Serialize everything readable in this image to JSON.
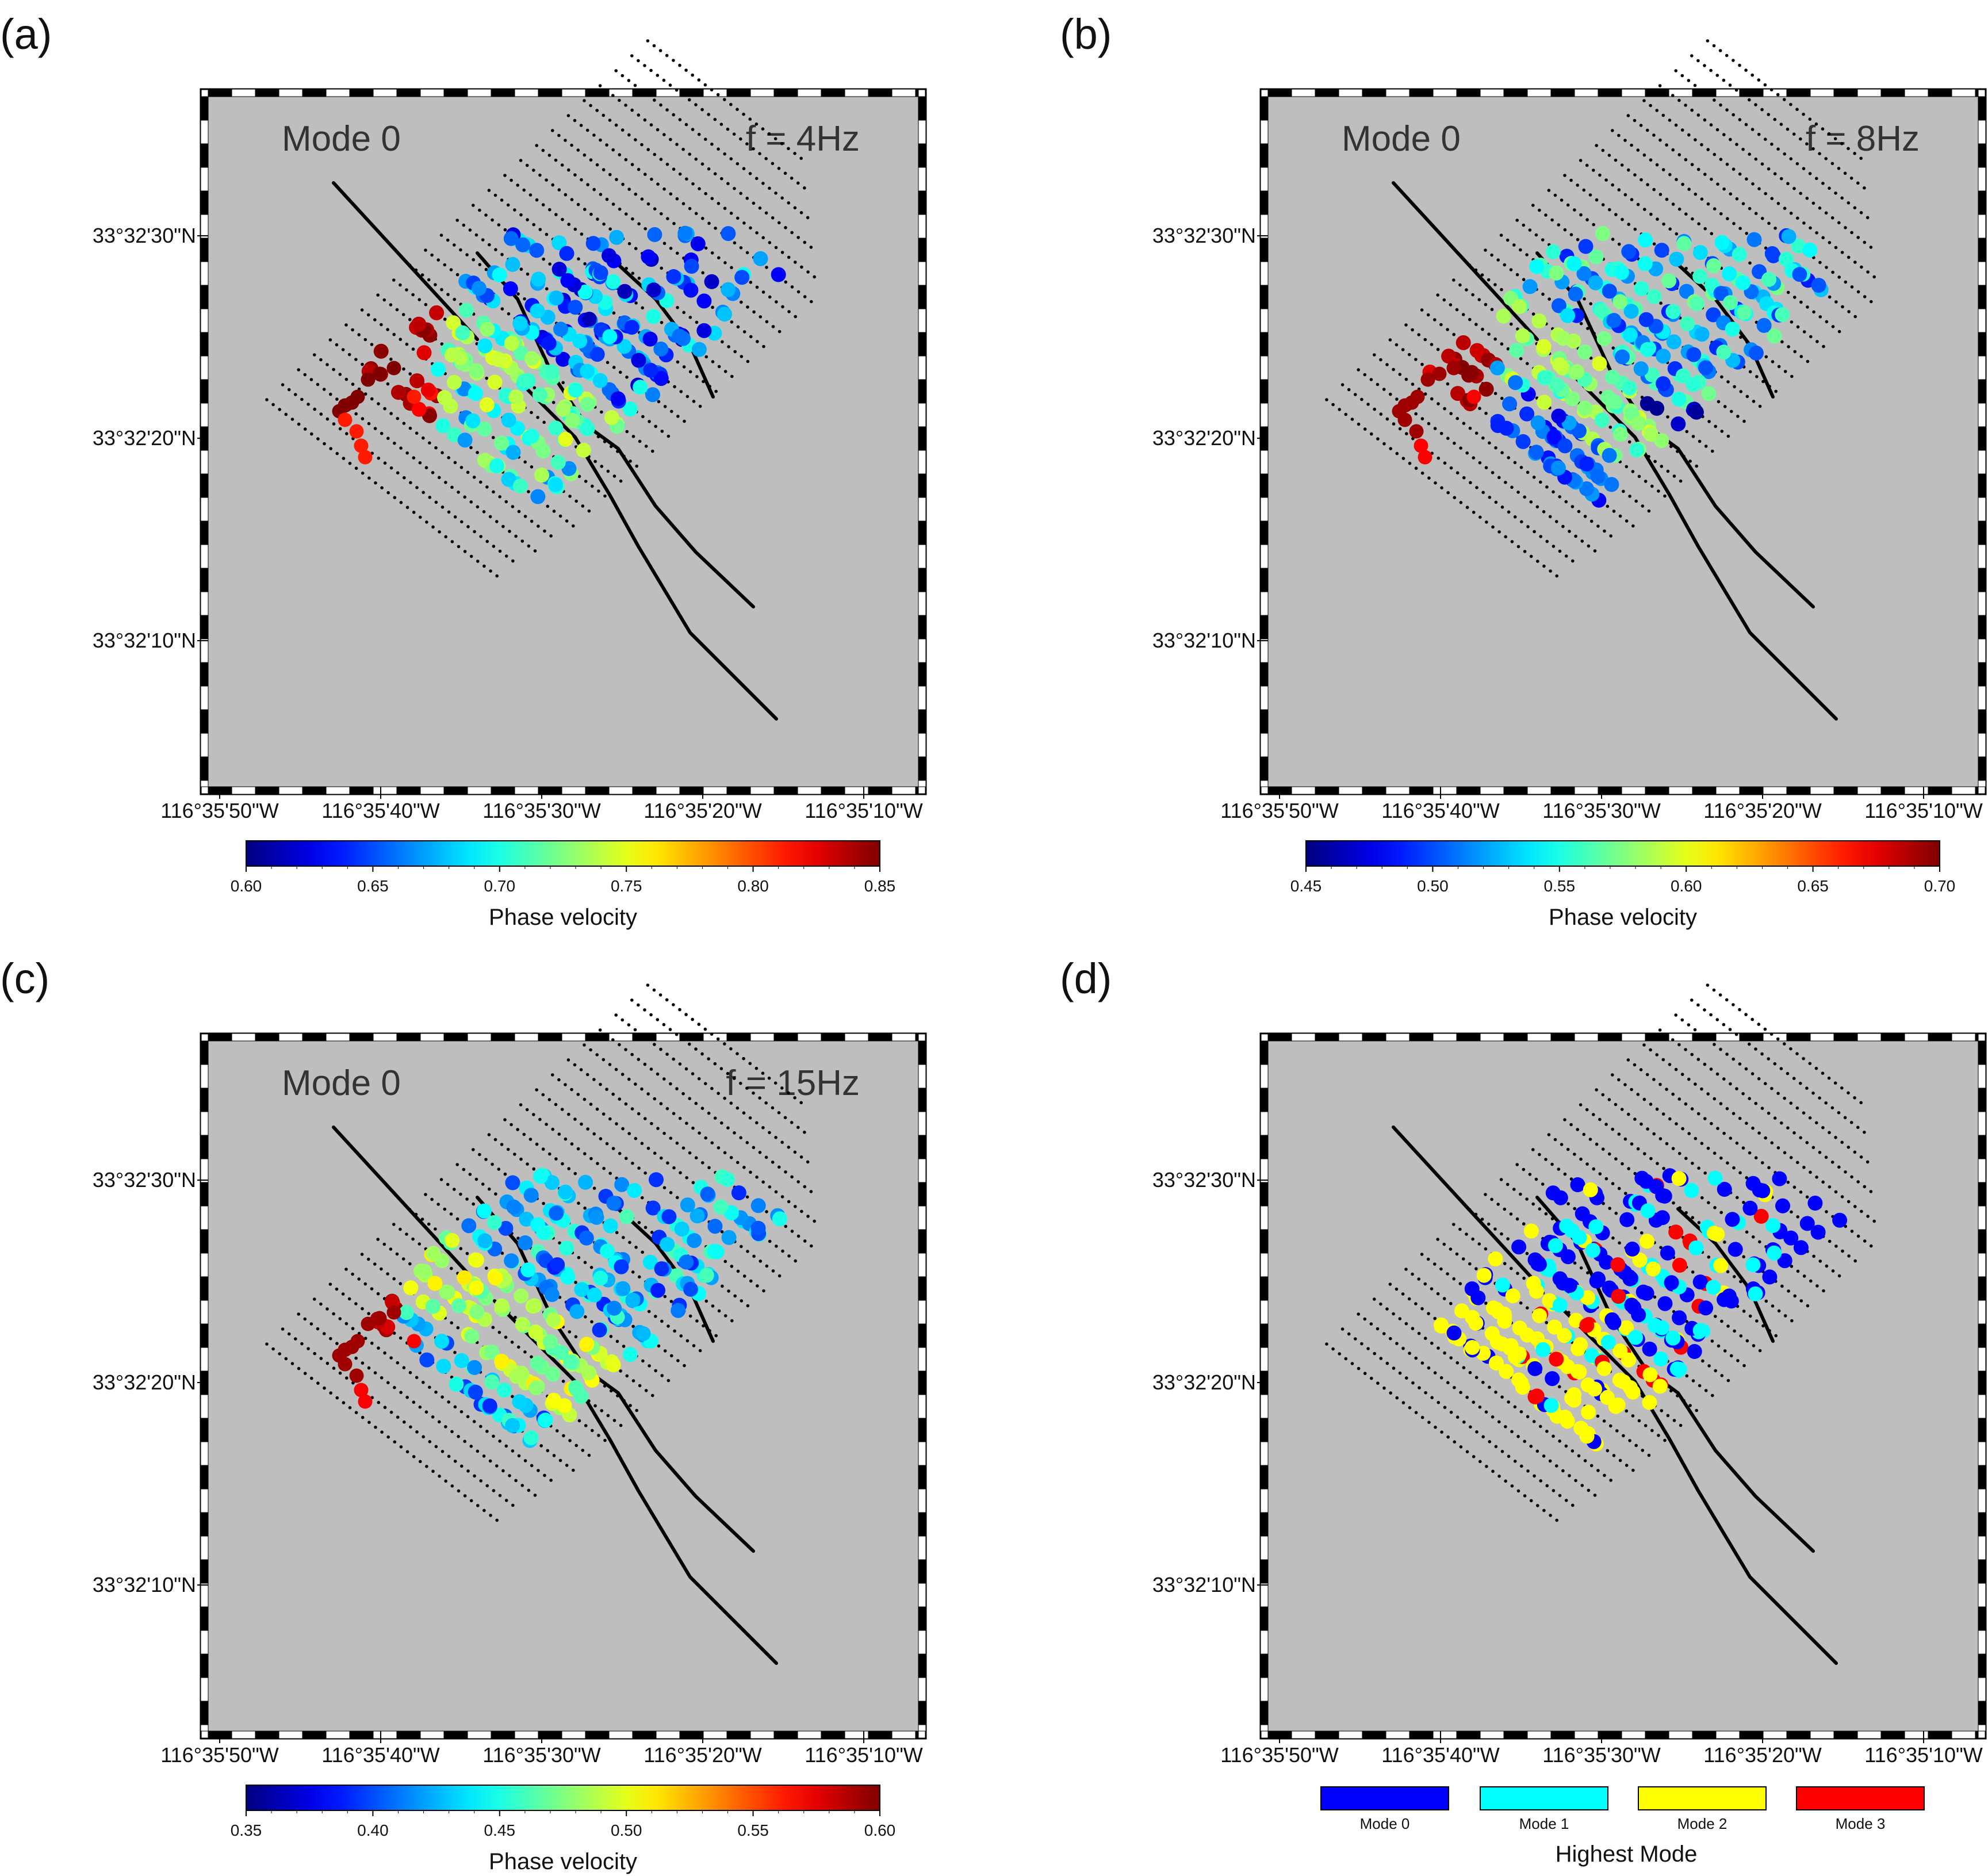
{
  "chart_data": [
    {
      "type": "scatter",
      "panel_label": "(a)",
      "mode_label": "Mode 0",
      "freq_label": "f = 4Hz",
      "colorbar": {
        "cmap": "jet",
        "min": 0.6,
        "max": 0.85,
        "ticks": [
          "0.60",
          "0.65",
          "0.70",
          "0.75",
          "0.80",
          "0.85"
        ],
        "title": "Phase velocity"
      },
      "seed": 11,
      "pattern": "f4"
    },
    {
      "type": "scatter",
      "panel_label": "(b)",
      "mode_label": "Mode 0",
      "freq_label": "f = 8Hz",
      "colorbar": {
        "cmap": "jet",
        "min": 0.45,
        "max": 0.7,
        "ticks": [
          "0.45",
          "0.50",
          "0.55",
          "0.60",
          "0.65",
          "0.70"
        ],
        "title": "Phase velocity"
      },
      "seed": 23,
      "pattern": "f8"
    },
    {
      "type": "scatter",
      "panel_label": "(c)",
      "mode_label": "Mode 0",
      "freq_label": "f = 15Hz",
      "colorbar": {
        "cmap": "jet",
        "min": 0.35,
        "max": 0.6,
        "ticks": [
          "0.35",
          "0.40",
          "0.45",
          "0.50",
          "0.55",
          "0.60"
        ],
        "title": "Phase velocity"
      },
      "seed": 37,
      "pattern": "f15"
    },
    {
      "type": "scatter",
      "panel_label": "(d)",
      "mode_label": "",
      "freq_label": "",
      "legend": {
        "title": "Highest Mode",
        "items": [
          {
            "label": "Mode 0",
            "color": "#0000ff"
          },
          {
            "label": "Mode 1",
            "color": "#00ffff"
          },
          {
            "label": "Mode 2",
            "color": "#ffff00"
          },
          {
            "label": "Mode 3",
            "color": "#ff0000"
          }
        ]
      },
      "seed": 51,
      "pattern": "modes"
    }
  ],
  "axes": {
    "x_ticks": [
      "116°35'50\"W",
      "116°35'40\"W",
      "116°35'30\"W",
      "116°35'20\"W",
      "116°35'10\"W"
    ],
    "y_ticks": [
      "33°32'30\"N",
      "33°32'20\"N",
      "33°32'10\"N"
    ],
    "background": "#bebebe",
    "fault_color": "#000000"
  }
}
